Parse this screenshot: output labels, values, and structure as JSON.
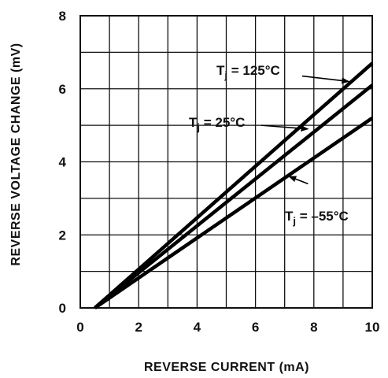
{
  "chart_data": {
    "type": "line",
    "xlabel": "REVERSE CURRENT (mA)",
    "ylabel": "REVERSE VOLTAGE CHANGE (mV)",
    "xlim": [
      0,
      10
    ],
    "ylim": [
      0,
      8
    ],
    "xticks": [
      "0",
      "2",
      "4",
      "6",
      "8",
      "10"
    ],
    "yticks": [
      "0",
      "2",
      "4",
      "6",
      "8"
    ],
    "grid": true,
    "series": [
      {
        "name": "Tj = 125°C",
        "x": [
          0.5,
          10
        ],
        "y": [
          0,
          6.7
        ]
      },
      {
        "name": "Tj = 25°C",
        "x": [
          0.5,
          10
        ],
        "y": [
          0,
          6.1
        ]
      },
      {
        "name": "Tj = –55°C",
        "x": [
          0.5,
          10
        ],
        "y": [
          0,
          5.2
        ]
      }
    ],
    "annotations": [
      {
        "series": 0,
        "main": "T",
        "sub": "j",
        "rest": " = 125°C"
      },
      {
        "series": 1,
        "main": "T",
        "sub": "j",
        "rest": " = 25°C"
      },
      {
        "series": 2,
        "main": "T",
        "sub": "j",
        "rest": " = –55°C"
      }
    ]
  }
}
